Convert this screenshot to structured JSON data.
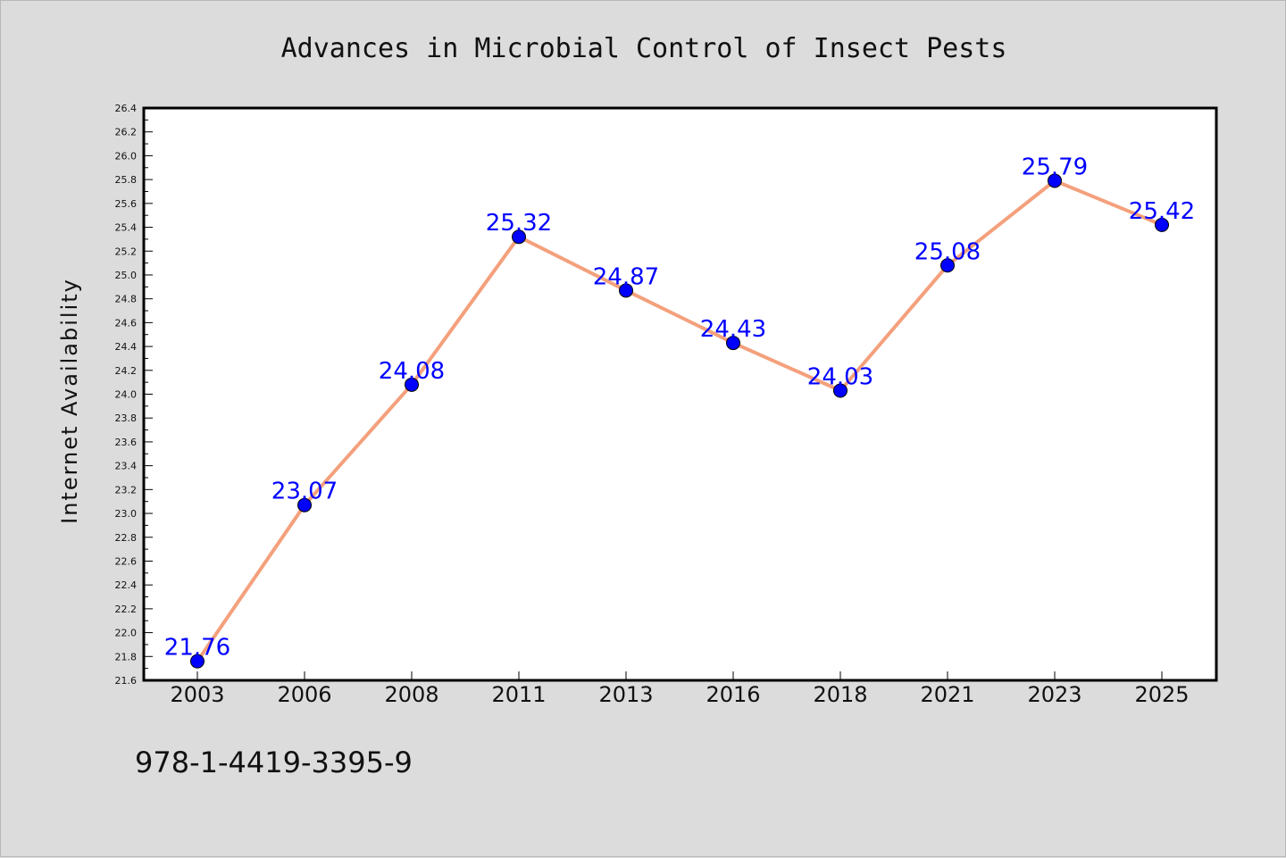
{
  "chart_data": {
    "type": "line",
    "title": "Advances in Microbial Control of Insect Pests",
    "xlabel": "",
    "ylabel": "Internet Availability",
    "categories": [
      "2003",
      "2006",
      "2008",
      "2011",
      "2013",
      "2016",
      "2018",
      "2021",
      "2023",
      "2025"
    ],
    "series": [
      {
        "values": [
          21.76,
          23.07,
          24.08,
          25.32,
          24.87,
          24.43,
          24.03,
          25.08,
          25.79,
          25.42
        ]
      }
    ],
    "ylim": [
      21.6,
      26.4
    ],
    "y_major_step": 0.2,
    "y_minor_step": 0.1,
    "grid": false,
    "line_color": "#f4a07c",
    "marker_color": "#0000ff",
    "label_color": "#0000ff"
  },
  "footer": {
    "isbn": "978-1-4419-3395-9"
  }
}
